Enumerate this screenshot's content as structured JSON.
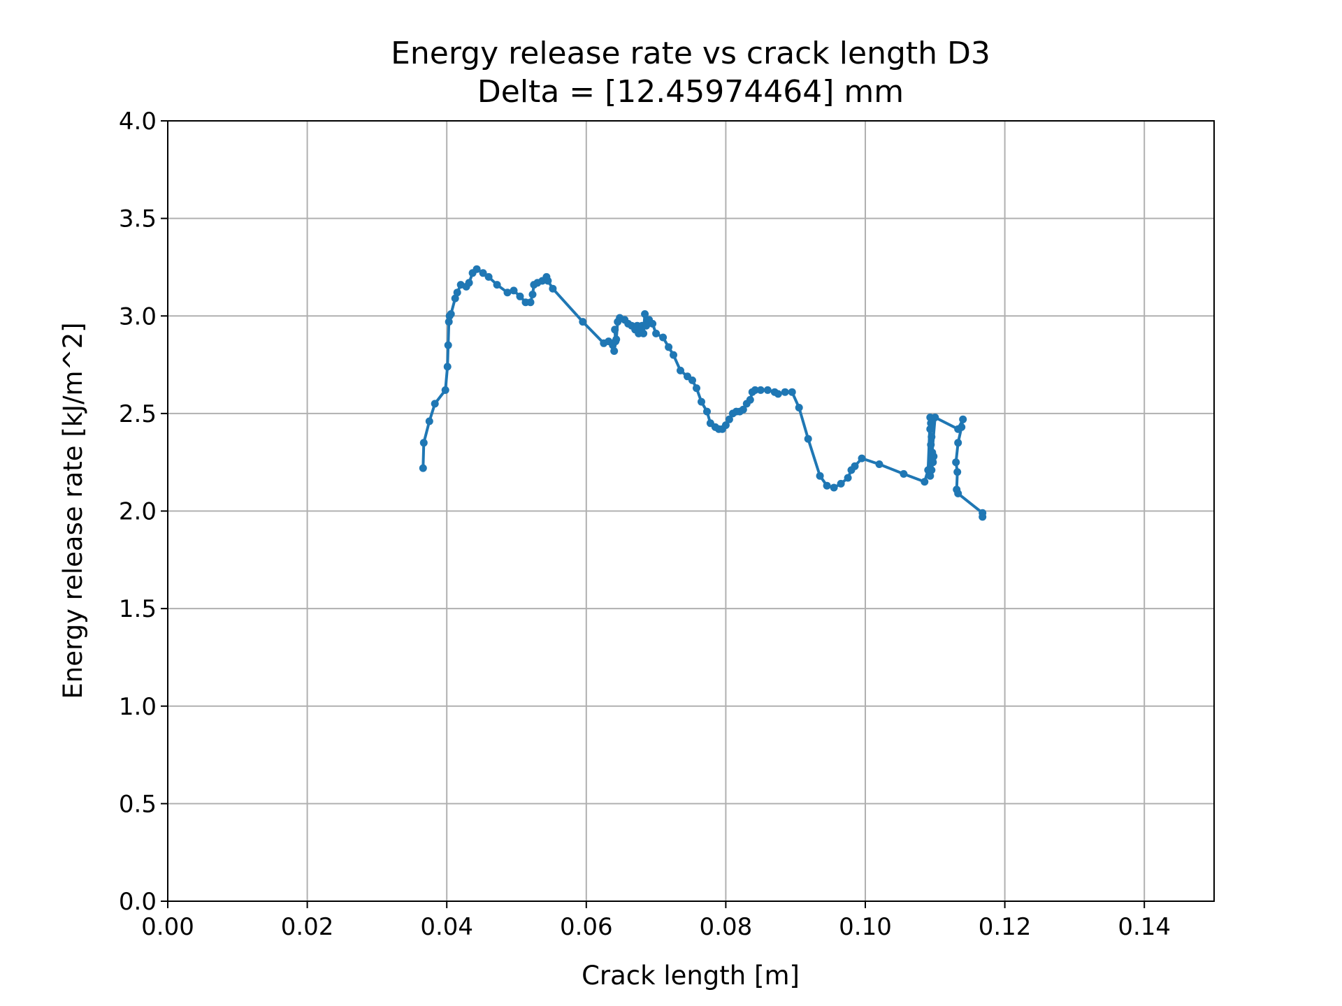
{
  "chart_data": {
    "type": "line",
    "title": "Energy release rate vs crack length D3",
    "subtitle": "Delta = [12.45974464] mm",
    "xlabel": "Crack length [m]",
    "ylabel": "Energy release rate [kJ/m^2]",
    "xlim": [
      0,
      0.15
    ],
    "ylim": [
      0,
      4.0
    ],
    "xticks": [
      0,
      0.02,
      0.04,
      0.06,
      0.08,
      0.1,
      0.12,
      0.14
    ],
    "xtick_labels": [
      "0.00",
      "0.02",
      "0.04",
      "0.06",
      "0.08",
      "0.10",
      "0.12",
      "0.14"
    ],
    "yticks": [
      0,
      0.5,
      1.0,
      1.5,
      2.0,
      2.5,
      3.0,
      3.5,
      4.0
    ],
    "ytick_labels": [
      "0.0",
      "0.5",
      "1.0",
      "1.5",
      "2.0",
      "2.5",
      "3.0",
      "3.5",
      "4.0"
    ],
    "grid": true,
    "marker": "dot",
    "color": "#1f77b4",
    "series": [
      {
        "x": [
          0.0366,
          0.0367,
          0.0375,
          0.0383,
          0.0398,
          0.0401,
          0.0402,
          0.0403,
          0.0404,
          0.0406,
          0.0412,
          0.0415,
          0.042,
          0.0428,
          0.0432,
          0.0437,
          0.0443,
          0.0452,
          0.046,
          0.0472,
          0.0487,
          0.0496,
          0.0505,
          0.0513,
          0.052,
          0.0523,
          0.0525,
          0.053,
          0.0537,
          0.0543,
          0.0545,
          0.0552,
          0.0595,
          0.0625,
          0.0632,
          0.0638,
          0.064,
          0.0642,
          0.0641,
          0.0643,
          0.0645,
          0.0648,
          0.0655,
          0.066,
          0.0665,
          0.067,
          0.0673,
          0.0675,
          0.0678,
          0.068,
          0.0682,
          0.0684,
          0.0686,
          0.069,
          0.0695,
          0.07,
          0.071,
          0.0718,
          0.0725,
          0.0735,
          0.0745,
          0.0752,
          0.0758,
          0.0765,
          0.0773,
          0.0778,
          0.0785,
          0.079,
          0.0795,
          0.08,
          0.0805,
          0.081,
          0.0815,
          0.082,
          0.0825,
          0.083,
          0.0835,
          0.0838,
          0.0842,
          0.085,
          0.086,
          0.087,
          0.0875,
          0.0885,
          0.0895,
          0.0905,
          0.0918,
          0.0935,
          0.0945,
          0.0955,
          0.0965,
          0.0975,
          0.098,
          0.0985,
          0.0995,
          0.102,
          0.1055,
          0.1085,
          0.109,
          0.1093,
          0.1094,
          0.1093,
          0.1095,
          0.1094,
          0.1096,
          0.1095,
          0.1097,
          0.1096,
          0.1098,
          0.1095,
          0.1093,
          0.11,
          0.1133,
          0.114,
          0.1138,
          0.1133,
          0.113,
          0.1132,
          0.1131,
          0.1133,
          0.1168,
          0.1168
        ],
        "y": [
          2.22,
          2.35,
          2.46,
          2.55,
          2.62,
          2.74,
          2.85,
          2.97,
          3.0,
          3.01,
          3.09,
          3.12,
          3.16,
          3.15,
          3.17,
          3.22,
          3.24,
          3.22,
          3.2,
          3.16,
          3.12,
          3.13,
          3.1,
          3.07,
          3.07,
          3.11,
          3.16,
          3.17,
          3.18,
          3.2,
          3.18,
          3.14,
          2.97,
          2.86,
          2.87,
          2.85,
          2.82,
          2.87,
          2.93,
          2.88,
          2.97,
          2.99,
          2.98,
          2.96,
          2.95,
          2.93,
          2.95,
          2.91,
          2.93,
          2.95,
          2.91,
          3.01,
          2.95,
          2.98,
          2.96,
          2.91,
          2.89,
          2.84,
          2.8,
          2.72,
          2.69,
          2.67,
          2.63,
          2.56,
          2.51,
          2.45,
          2.43,
          2.42,
          2.42,
          2.44,
          2.47,
          2.5,
          2.51,
          2.51,
          2.52,
          2.55,
          2.57,
          2.61,
          2.62,
          2.62,
          2.62,
          2.61,
          2.6,
          2.61,
          2.61,
          2.53,
          2.37,
          2.18,
          2.13,
          2.12,
          2.14,
          2.17,
          2.21,
          2.23,
          2.27,
          2.24,
          2.19,
          2.15,
          2.21,
          2.48,
          2.45,
          2.42,
          2.38,
          2.34,
          2.3,
          2.27,
          2.25,
          2.26,
          2.28,
          2.21,
          2.18,
          2.48,
          2.42,
          2.47,
          2.43,
          2.35,
          2.25,
          2.2,
          2.11,
          2.09,
          1.99,
          1.97
        ]
      }
    ]
  }
}
